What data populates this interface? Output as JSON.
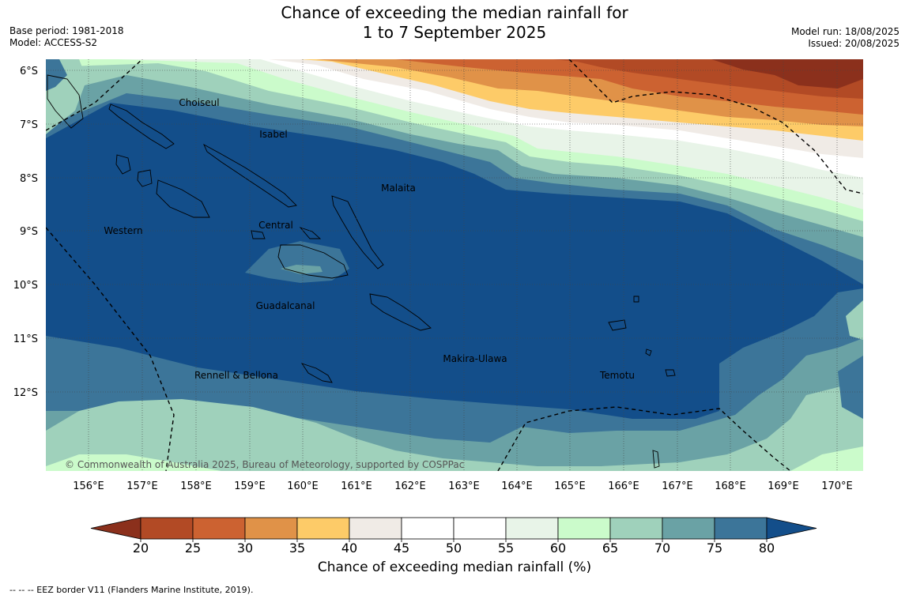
{
  "title_line1": "Chance of exceeding the median rainfall for",
  "title_line2": "1 to 7 September 2025",
  "base_period": "Base period: 1981-2018",
  "model": "Model: ACCESS-S2",
  "model_run": "Model run: 18/08/2025",
  "issued": "Issued: 20/08/2025",
  "lat_labels": [
    "6°S",
    "7°S",
    "8°S",
    "9°S",
    "10°S",
    "11°S",
    "12°S"
  ],
  "lon_labels": [
    "156°E",
    "157°E",
    "158°E",
    "159°E",
    "160°E",
    "161°E",
    "162°E",
    "163°E",
    "164°E",
    "165°E",
    "166°E",
    "167°E",
    "168°E",
    "169°E",
    "170°E"
  ],
  "regions": [
    "Choiseul",
    "Isabel",
    "Malaita",
    "Western",
    "Central",
    "Guadalcanal",
    "Makira-Ulawa",
    "Rennell & Bellona",
    "Temotu"
  ],
  "copyright": "© Commonwealth of Australia 2025, Bureau of Meteorology, supported by COSPPac",
  "colorbar": {
    "ticks": [
      "20",
      "25",
      "30",
      "35",
      "40",
      "45",
      "50",
      "55",
      "60",
      "65",
      "70",
      "75",
      "80"
    ],
    "colors": [
      "#8b301c",
      "#b24a25",
      "#cc6231",
      "#e09248",
      "#fdcb68",
      "#f0ebe6",
      "#ffffff",
      "#ffffff",
      "#e8f4e8",
      "#cbfbcb",
      "#9fd1bb",
      "#6aa2a5",
      "#3c7599",
      "#134e8a"
    ],
    "label": "Chance of exceeding median rainfall (%)"
  },
  "legend_note": "--  --  -- EEZ border V11 (Flanders Marine Institute, 2019)."
}
